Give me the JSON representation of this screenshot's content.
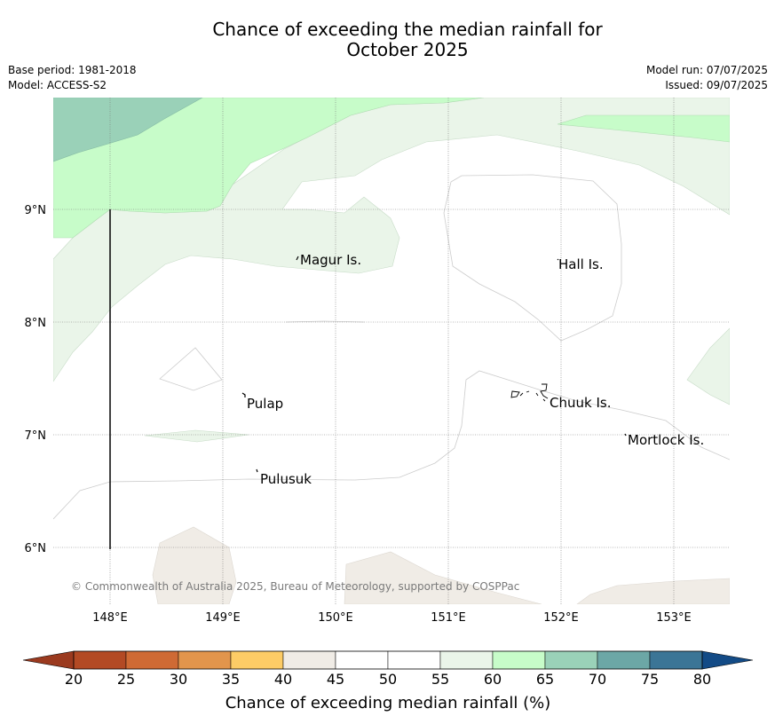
{
  "title": {
    "line1": "Chance of exceeding the median rainfall for",
    "line2": "October 2025"
  },
  "meta": {
    "base_period": "Base period: 1981-2018",
    "model": "Model: ACCESS-S2",
    "model_run": "Model run: 07/07/2025",
    "issued": "Issued: 09/07/2025"
  },
  "map": {
    "lat_labels": [
      "9°N",
      "8°N",
      "7°N",
      "6°N"
    ],
    "lon_labels": [
      "148°E",
      "149°E",
      "150°E",
      "151°E",
      "152°E",
      "153°E"
    ],
    "places": [
      "Magur Is.",
      "Hall Is.",
      "Pulap",
      "Chuuk Is.",
      "Mortlock Is.",
      "Pulusuk"
    ],
    "copyright": "© Commonwealth of Australia 2025, Bureau of Meteorology, supported by COSPPac"
  },
  "colorbar": {
    "title": "Chance of exceeding median rainfall (%)",
    "labels": [
      "20",
      "25",
      "30",
      "35",
      "40",
      "45",
      "50",
      "55",
      "60",
      "65",
      "70",
      "75",
      "80"
    ],
    "colors": [
      "#b34a24",
      "#cf6a34",
      "#e2954c",
      "#fdcc66",
      "#f0ece6",
      "#ffffff",
      "#ffffff",
      "#eaf5e9",
      "#c7fcc9",
      "#9ad1b8",
      "#6ca7a6",
      "#3b7596"
    ],
    "under_color": "#9b3a1f",
    "over_color": "#134b86"
  }
}
